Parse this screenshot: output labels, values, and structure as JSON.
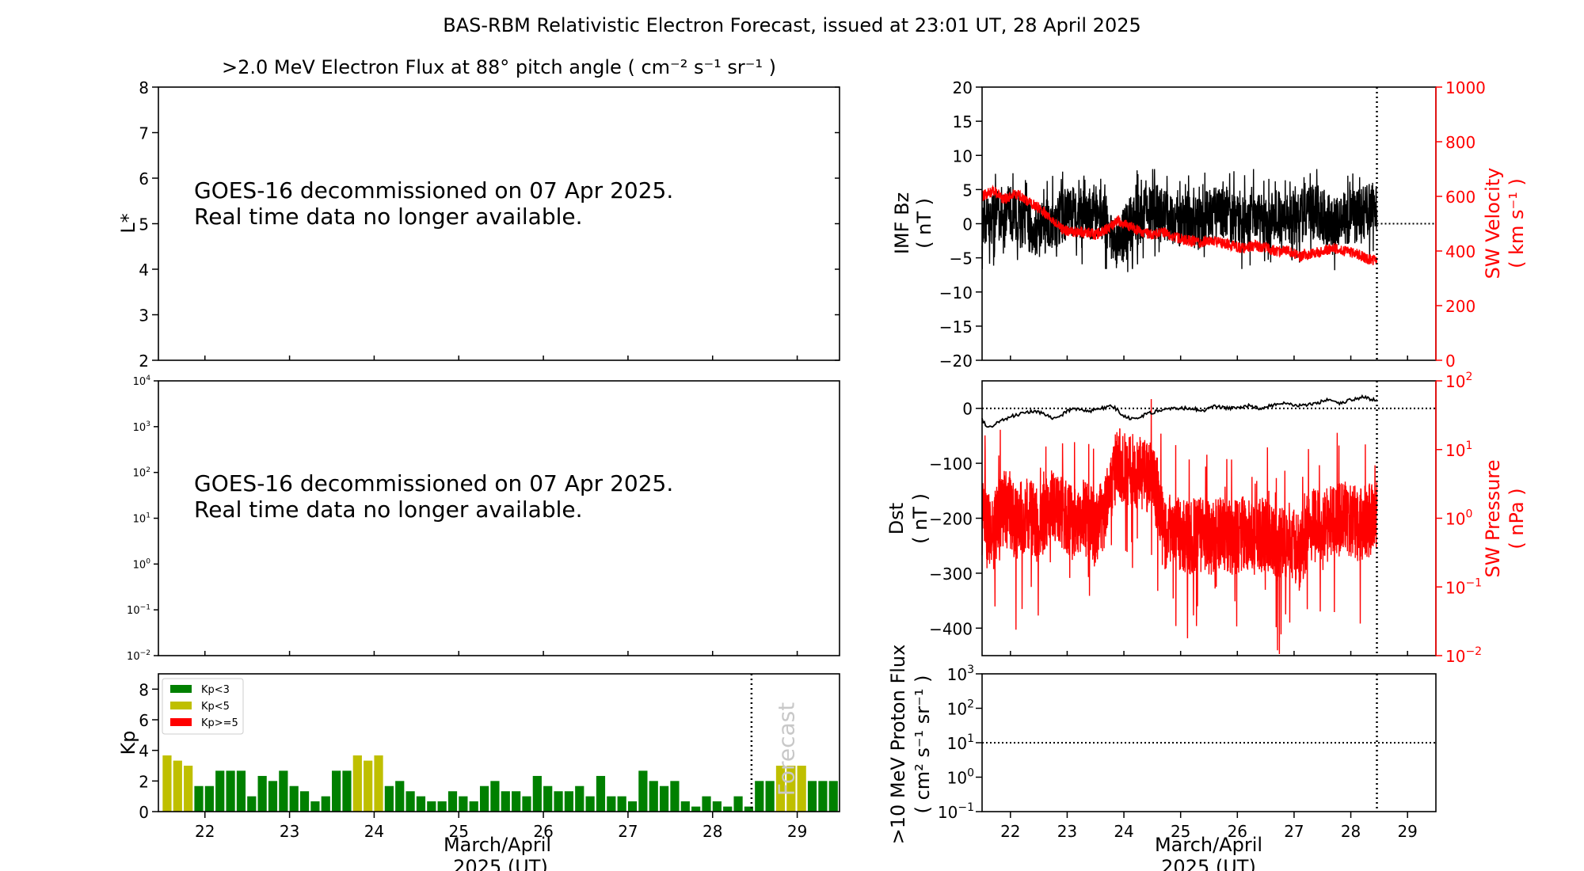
{
  "title": "BAS-RBM Relativistic Electron Forecast, issued at 23:01 UT, 28 April 2025",
  "colors": {
    "kp_low": "#008000",
    "kp_mid": "#bfbf00",
    "kp_high": "#ff0000",
    "sw_red": "#ff0000",
    "forecast_text": "#c8c8c8"
  },
  "chart_data": [
    {
      "id": "flux_lstar",
      "type": "text-panel",
      "title": ">2.0 MeV Electron Flux at 88° pitch angle ( cm⁻² s⁻¹ sr⁻¹ )",
      "ylabel": "L*",
      "ylim": [
        2,
        8
      ],
      "yticks": [
        "2",
        "3",
        "4",
        "5",
        "6",
        "7",
        "8"
      ],
      "message_line1": "GOES-16 decommissioned on 07 Apr 2025.",
      "message_line2": "Real time data no longer available."
    },
    {
      "id": "flux_log",
      "type": "text-panel",
      "ylim": [
        0.01,
        10000
      ],
      "yscale": "log",
      "yticks": [
        {
          "base": "10",
          "exp": "4"
        },
        {
          "base": "10",
          "exp": "3"
        },
        {
          "base": "10",
          "exp": "2"
        },
        {
          "base": "10",
          "exp": "1"
        },
        {
          "base": "10",
          "exp": "0"
        },
        {
          "base": "10",
          "exp": "−1"
        },
        {
          "base": "10",
          "exp": "−2"
        }
      ],
      "message_line1": "GOES-16 decommissioned on 07 Apr 2025.",
      "message_line2": "Real time data no longer available."
    },
    {
      "id": "kp",
      "type": "bar",
      "ylabel": "Kp",
      "ylim": [
        0,
        9
      ],
      "yticks": [
        "0",
        "2",
        "4",
        "6",
        "8"
      ],
      "xlabel_line1": "March/April",
      "xlabel_line2": "2025 (UT)",
      "xlim": [
        21.45,
        29.5
      ],
      "xticks": [
        "22",
        "23",
        "24",
        "25",
        "26",
        "27",
        "28",
        "29"
      ],
      "legend": [
        "Kp<3",
        "Kp<5",
        "Kp>=5"
      ],
      "legend_position": "top-left",
      "forecast_label": "Forecast",
      "now": 28.46,
      "bar_start": 21.5,
      "bar_step": 0.125,
      "values": [
        3.67,
        3.33,
        3.0,
        1.67,
        1.67,
        2.67,
        2.67,
        2.67,
        1.0,
        2.33,
        2.0,
        2.67,
        1.67,
        1.33,
        0.67,
        1.0,
        2.67,
        2.67,
        3.67,
        3.33,
        3.67,
        1.67,
        2.0,
        1.33,
        1.0,
        0.67,
        0.67,
        1.33,
        1.0,
        0.67,
        1.67,
        2.0,
        1.33,
        1.33,
        1.0,
        2.33,
        1.67,
        1.33,
        1.33,
        1.67,
        1.0,
        2.33,
        1.0,
        1.0,
        0.67,
        2.67,
        2.0,
        1.67,
        2.0,
        0.67,
        0.33,
        1.0,
        0.67,
        0.33,
        1.0,
        0.33,
        2.0,
        2.0,
        3.0,
        3.0,
        3.0,
        2.0,
        2.0,
        2.0
      ]
    },
    {
      "id": "imf_sw",
      "type": "line",
      "ylabel_line1": "IMF Bz",
      "ylabel_line2": "( nT )",
      "ylim": [
        -20,
        20
      ],
      "yticks": [
        "−20",
        "−15",
        "−10",
        "−5",
        "0",
        "5",
        "10",
        "15",
        "20"
      ],
      "y2label_line1": "SW Velocity",
      "y2label_line2": "( km s⁻¹ )",
      "y2lim": [
        0,
        1000
      ],
      "y2ticks": [
        "0",
        "200",
        "400",
        "600",
        "800",
        "1000"
      ],
      "xlim": [
        21.5,
        29.5
      ],
      "now": 28.46,
      "series": [
        {
          "name": "IMF Bz",
          "x": [
            21.5,
            21.7,
            21.9,
            22.1,
            22.3,
            22.5,
            22.7,
            22.9,
            23.1,
            23.3,
            23.5,
            23.7,
            23.9,
            24.1,
            24.3,
            24.5,
            24.7,
            24.9,
            25.1,
            25.3,
            25.5,
            25.7,
            25.9,
            26.1,
            26.3,
            26.5,
            26.7,
            26.9,
            27.1,
            27.3,
            27.5,
            27.7,
            27.9,
            28.1,
            28.3,
            28.46
          ],
          "values": [
            0,
            1,
            2,
            1,
            0,
            -1,
            0,
            1,
            2,
            1,
            2,
            0,
            -3,
            0,
            1,
            2,
            1,
            0,
            1,
            0,
            1,
            2,
            1,
            0,
            1,
            0,
            1,
            0,
            1,
            2,
            1,
            0,
            1,
            1,
            2,
            2
          ],
          "spread": 4
        },
        {
          "name": "SW Velocity",
          "x": [
            21.5,
            21.7,
            21.9,
            22.1,
            22.3,
            22.5,
            22.7,
            22.9,
            23.1,
            23.3,
            23.5,
            23.7,
            23.9,
            24.1,
            24.3,
            24.5,
            24.7,
            24.9,
            25.1,
            25.3,
            25.5,
            25.7,
            25.9,
            26.1,
            26.3,
            26.5,
            26.7,
            26.9,
            27.1,
            27.3,
            27.5,
            27.7,
            27.9,
            28.1,
            28.3,
            28.46
          ],
          "values": [
            600,
            620,
            590,
            610,
            580,
            560,
            520,
            480,
            470,
            470,
            460,
            480,
            510,
            490,
            470,
            460,
            470,
            450,
            440,
            430,
            440,
            430,
            420,
            410,
            420,
            410,
            400,
            400,
            380,
            390,
            400,
            410,
            400,
            390,
            370,
            370
          ],
          "spread": 40
        }
      ],
      "forecast_level": 0
    },
    {
      "id": "dst_pressure",
      "type": "line",
      "ylabel_line1": "Dst",
      "ylabel_line2": "( nT )",
      "ylim": [
        -450,
        50
      ],
      "yticks": [
        "0",
        "−100",
        "−200",
        "−300",
        "−400"
      ],
      "y2label_line1": "SW Pressure",
      "y2label_line2": "( nPa )",
      "y2lim": [
        0.01,
        100
      ],
      "y2scale": "log",
      "y2ticks": [
        {
          "base": "10",
          "exp": "2"
        },
        {
          "base": "10",
          "exp": "1"
        },
        {
          "base": "10",
          "exp": "0"
        },
        {
          "base": "10",
          "exp": "−1"
        },
        {
          "base": "10",
          "exp": "−2"
        }
      ],
      "xlim": [
        21.5,
        29.5
      ],
      "now": 28.46,
      "series": [
        {
          "name": "Dst",
          "x": [
            21.5,
            21.6,
            21.8,
            22.0,
            22.2,
            22.4,
            22.6,
            22.8,
            23.0,
            23.2,
            23.4,
            23.6,
            23.8,
            24.0,
            24.2,
            24.4,
            24.6,
            24.8,
            25.0,
            25.2,
            25.4,
            25.6,
            25.8,
            26.0,
            26.2,
            26.4,
            26.6,
            26.8,
            27.0,
            27.2,
            27.4,
            27.6,
            27.8,
            28.0,
            28.2,
            28.46
          ],
          "values": [
            -20,
            -35,
            -25,
            -15,
            -10,
            -5,
            -10,
            -20,
            -5,
            0,
            -5,
            0,
            5,
            -15,
            -20,
            -10,
            -5,
            0,
            0,
            0,
            -5,
            5,
            0,
            0,
            5,
            0,
            5,
            10,
            5,
            5,
            10,
            15,
            10,
            15,
            20,
            15
          ]
        },
        {
          "name": "SW Pressure",
          "x": [
            21.5,
            21.7,
            21.9,
            22.1,
            22.3,
            22.5,
            22.7,
            22.9,
            23.1,
            23.3,
            23.5,
            23.7,
            23.9,
            24.1,
            24.3,
            24.5,
            24.7,
            24.9,
            25.1,
            25.3,
            25.5,
            25.7,
            25.9,
            26.1,
            26.3,
            26.5,
            26.7,
            26.9,
            27.1,
            27.3,
            27.5,
            27.7,
            27.9,
            28.1,
            28.3,
            28.46
          ],
          "values": [
            1.0,
            0.6,
            1.5,
            0.8,
            1.2,
            0.7,
            1.5,
            1.2,
            0.8,
            1.2,
            0.6,
            1.5,
            6.0,
            5.0,
            4.5,
            3.5,
            0.6,
            0.7,
            0.5,
            0.6,
            0.5,
            0.6,
            0.5,
            0.6,
            0.5,
            0.6,
            0.4,
            0.5,
            0.3,
            0.8,
            0.7,
            0.9,
            1.0,
            0.8,
            0.9,
            1.0
          ],
          "spread_factor": 3.5
        }
      ],
      "dst_reference": 0
    },
    {
      "id": "proton",
      "type": "line",
      "ylabel_line1": ">10 MeV Proton Flux",
      "ylabel_line2": "( cm² s⁻¹ sr⁻¹ )",
      "ylim": [
        0.1,
        1000
      ],
      "yscale": "log",
      "yticks": [
        {
          "base": "10",
          "exp": "3"
        },
        {
          "base": "10",
          "exp": "2"
        },
        {
          "base": "10",
          "exp": "1"
        },
        {
          "base": "10",
          "exp": "0"
        },
        {
          "base": "10",
          "exp": "−1"
        }
      ],
      "threshold": 10,
      "xlim": [
        21.5,
        29.5
      ],
      "xticks": [
        "22",
        "23",
        "24",
        "25",
        "26",
        "27",
        "28",
        "29"
      ],
      "xlabel_line1": "March/April",
      "xlabel_line2": "2025 (UT)",
      "now": 28.46
    }
  ]
}
